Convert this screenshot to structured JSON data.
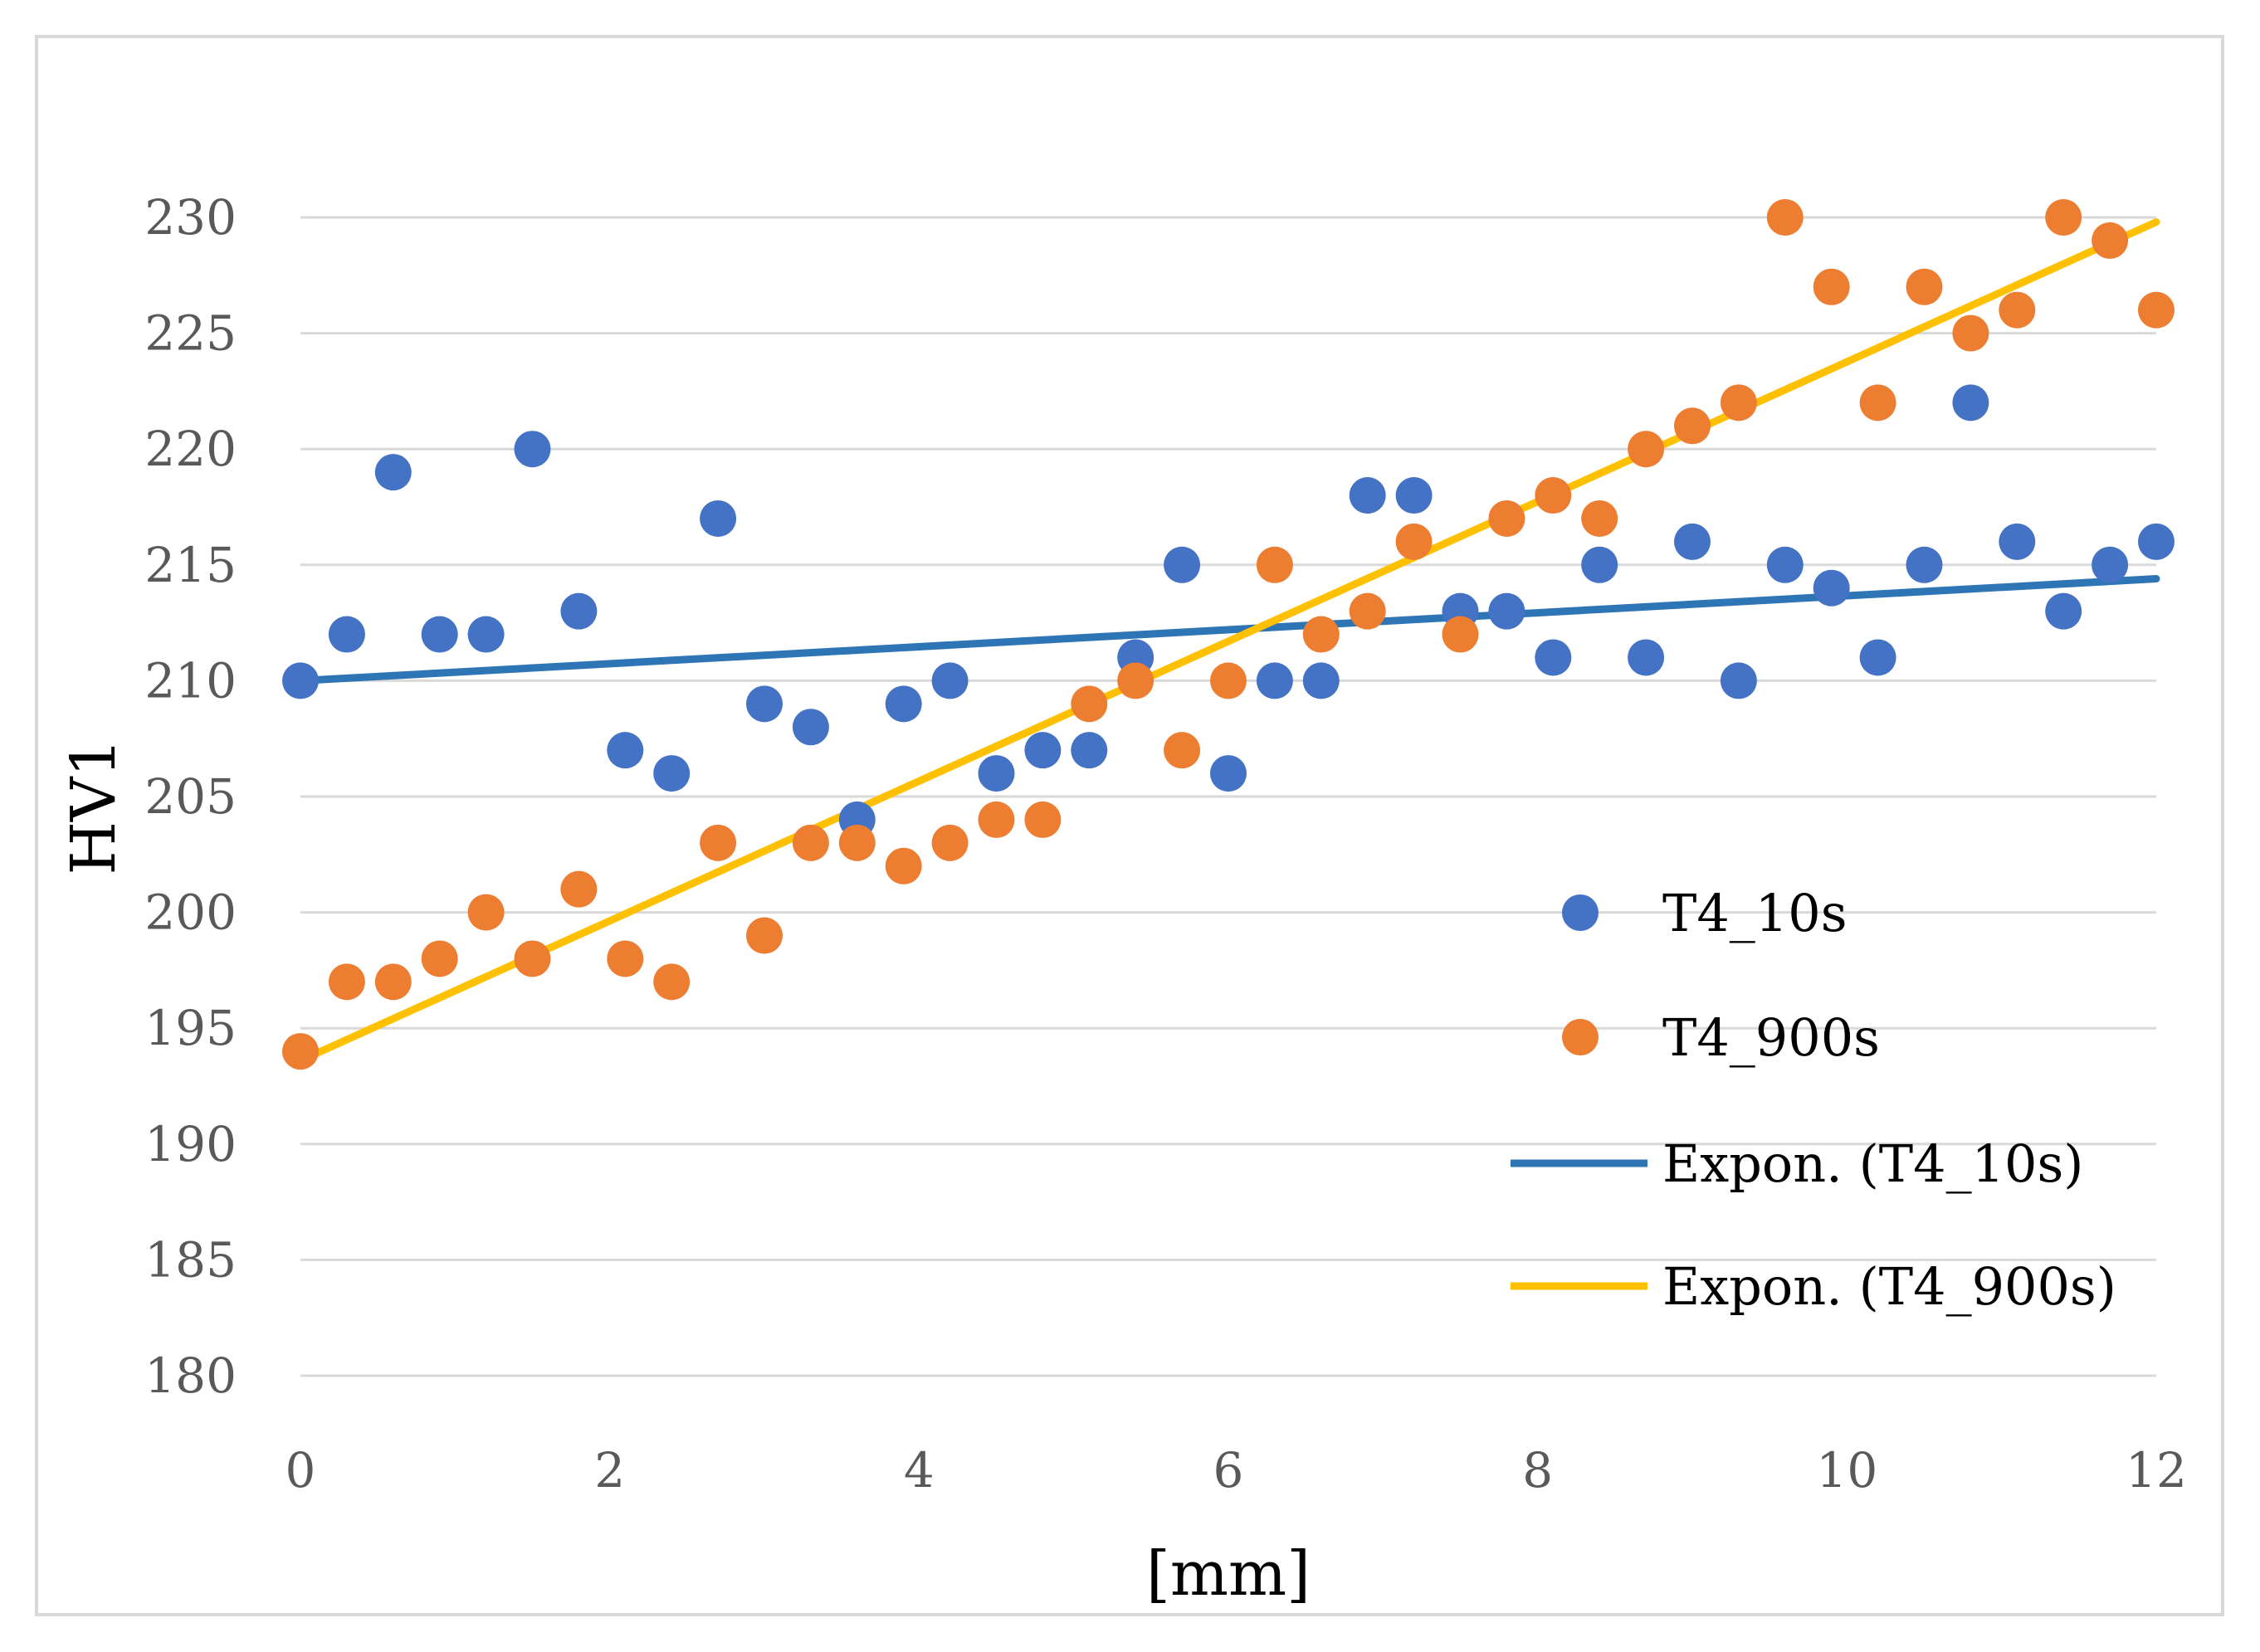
{
  "chart_data": {
    "type": "scatter",
    "xlabel": "[mm]",
    "ylabel": "HV1",
    "xlim": [
      0,
      12
    ],
    "ylim": [
      180,
      230
    ],
    "x_ticks": [
      0,
      2,
      4,
      6,
      8,
      10,
      12
    ],
    "y_ticks": [
      180,
      185,
      190,
      195,
      200,
      205,
      210,
      215,
      220,
      225,
      230
    ],
    "grid": "horizontal",
    "legend_position": "right",
    "series": [
      {
        "name": "T4_10s",
        "color": "#4472C4",
        "points": [
          [
            0,
            210
          ],
          [
            0.3,
            212
          ],
          [
            0.6,
            219
          ],
          [
            0.9,
            212
          ],
          [
            1.2,
            212
          ],
          [
            1.5,
            220
          ],
          [
            1.8,
            213
          ],
          [
            2.1,
            207
          ],
          [
            2.4,
            206
          ],
          [
            2.7,
            217
          ],
          [
            3.0,
            209
          ],
          [
            3.3,
            208
          ],
          [
            3.6,
            204
          ],
          [
            3.9,
            209
          ],
          [
            4.2,
            210
          ],
          [
            4.5,
            206
          ],
          [
            4.8,
            207
          ],
          [
            5.1,
            207
          ],
          [
            5.4,
            211
          ],
          [
            5.7,
            215
          ],
          [
            6.0,
            206
          ],
          [
            6.3,
            210
          ],
          [
            6.6,
            210
          ],
          [
            6.9,
            218
          ],
          [
            7.2,
            218
          ],
          [
            7.5,
            213
          ],
          [
            7.8,
            213
          ],
          [
            8.1,
            211
          ],
          [
            8.4,
            215
          ],
          [
            8.7,
            211
          ],
          [
            9.0,
            216
          ],
          [
            9.3,
            210
          ],
          [
            9.6,
            215
          ],
          [
            9.9,
            214
          ],
          [
            10.2,
            211
          ],
          [
            10.5,
            215
          ],
          [
            10.8,
            222
          ],
          [
            11.1,
            216
          ],
          [
            11.4,
            213
          ],
          [
            11.7,
            215
          ],
          [
            12.0,
            216
          ]
        ]
      },
      {
        "name": "T4_900s",
        "color": "#ED7D31",
        "points": [
          [
            0,
            194
          ],
          [
            0.3,
            197
          ],
          [
            0.6,
            197
          ],
          [
            0.9,
            198
          ],
          [
            1.2,
            200
          ],
          [
            1.5,
            198
          ],
          [
            1.8,
            201
          ],
          [
            2.1,
            198
          ],
          [
            2.4,
            197
          ],
          [
            2.7,
            203
          ],
          [
            3.0,
            199
          ],
          [
            3.3,
            203
          ],
          [
            3.6,
            203
          ],
          [
            3.9,
            202
          ],
          [
            4.2,
            203
          ],
          [
            4.5,
            204
          ],
          [
            4.8,
            204
          ],
          [
            5.1,
            209
          ],
          [
            5.4,
            210
          ],
          [
            5.7,
            207
          ],
          [
            6.0,
            210
          ],
          [
            6.3,
            215
          ],
          [
            6.6,
            212
          ],
          [
            6.9,
            213
          ],
          [
            7.2,
            216
          ],
          [
            7.5,
            212
          ],
          [
            7.8,
            217
          ],
          [
            8.1,
            218
          ],
          [
            8.4,
            217
          ],
          [
            8.7,
            220
          ],
          [
            9.0,
            221
          ],
          [
            9.3,
            222
          ],
          [
            9.6,
            230
          ],
          [
            9.9,
            227
          ],
          [
            10.2,
            222
          ],
          [
            10.5,
            227
          ],
          [
            10.8,
            225
          ],
          [
            11.1,
            226
          ],
          [
            11.4,
            230
          ],
          [
            11.7,
            229
          ],
          [
            12.0,
            226
          ]
        ]
      }
    ],
    "trendlines": [
      {
        "name": "Expon. (T4_10s)",
        "color": "#2E75B6",
        "start": [
          0,
          210.0
        ],
        "end": [
          12,
          214.4
        ]
      },
      {
        "name": "Expon. (T4_900s)",
        "color": "#FFC000",
        "start": [
          0,
          193.6
        ],
        "end": [
          12,
          229.8
        ]
      }
    ]
  }
}
